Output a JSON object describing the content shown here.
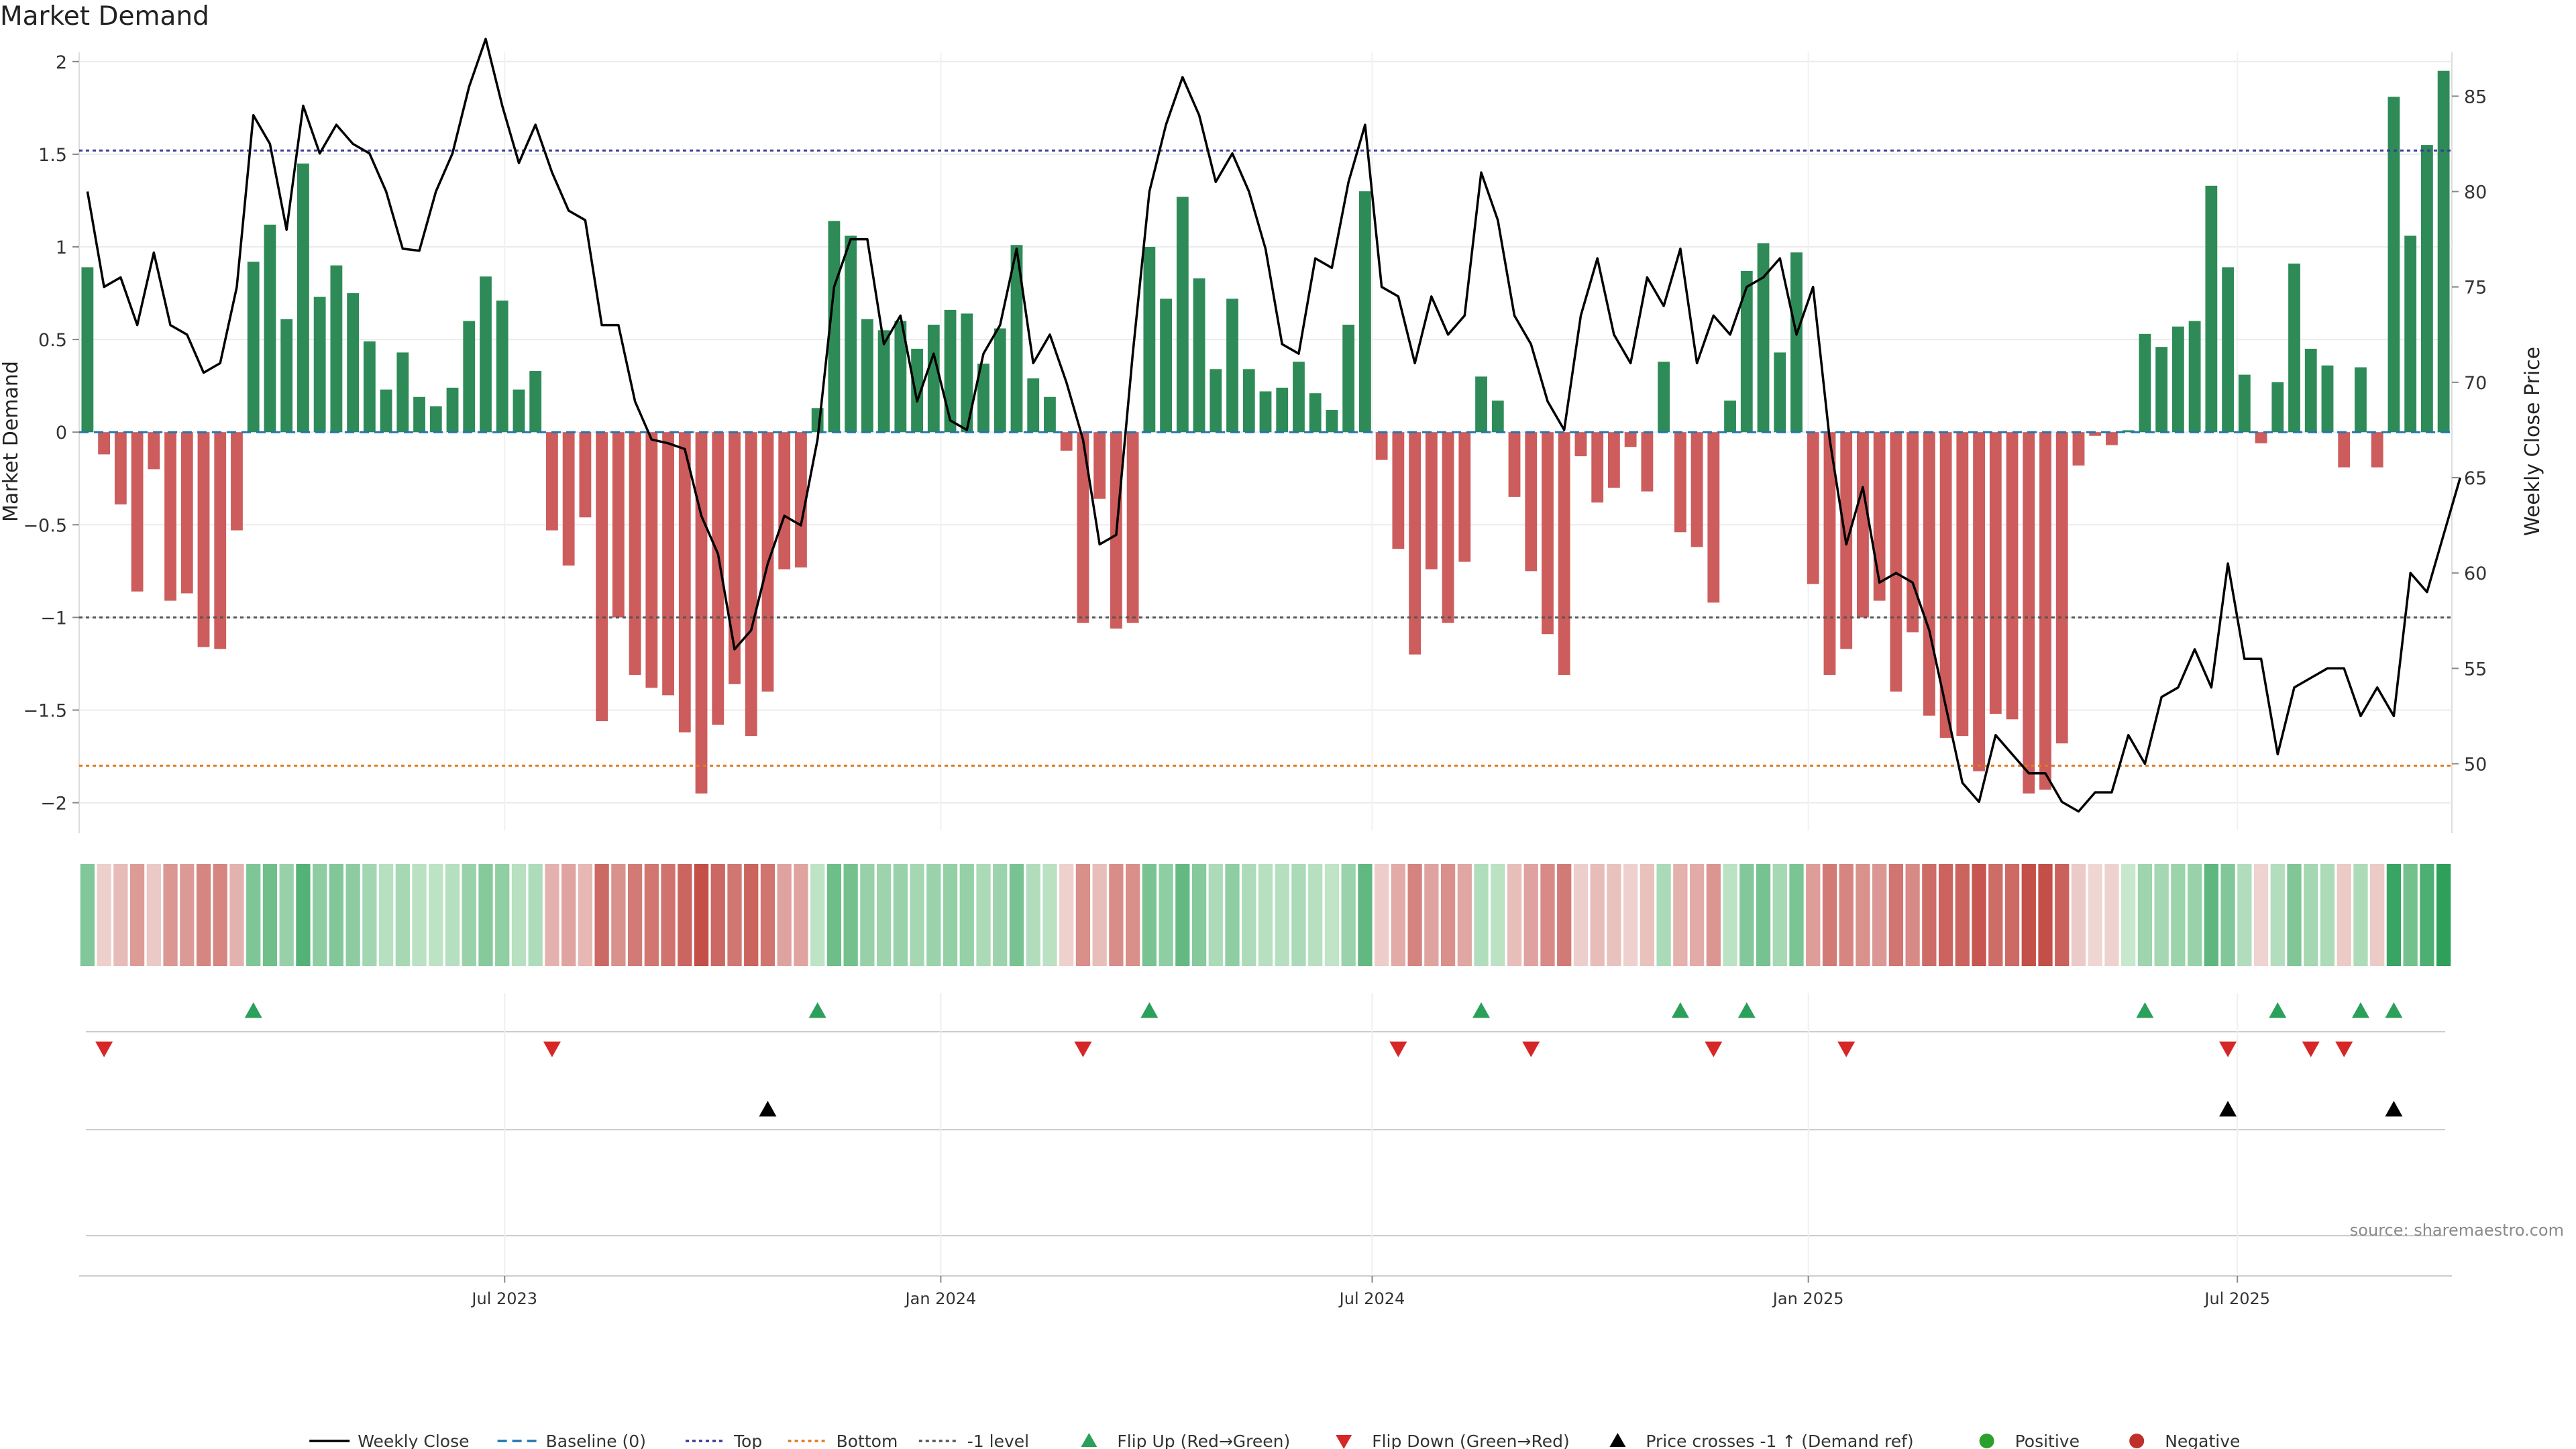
{
  "title": "Market Demand",
  "source": "source: sharemaestro.com",
  "chart_data": {
    "type": "bar",
    "ylabel": "Market Demand",
    "y2label": "Weekly Close Price",
    "ylim": [
      -2.15,
      2.05
    ],
    "y2lim": [
      46.5,
      87.3
    ],
    "yticks": [
      -2,
      -1.5,
      -1,
      -0.5,
      0,
      0.5,
      1,
      1.5,
      2
    ],
    "ytick_labels": [
      "−2",
      "−1.5",
      "−1",
      "−0.5",
      "0",
      "0.5",
      "1",
      "1.5",
      "2"
    ],
    "y2ticks": [
      50,
      55,
      60,
      65,
      70,
      75,
      80,
      85
    ],
    "y2tick_labels": [
      "50",
      "55",
      "60",
      "65",
      "70",
      "75",
      "80",
      "85"
    ],
    "x_start": "2023-01-06",
    "week_count": 145,
    "xticks": [
      {
        "date": "2023-07-01",
        "label": "Jul 2023"
      },
      {
        "date": "2024-01-01",
        "label": "Jan 2024"
      },
      {
        "date": "2024-07-01",
        "label": "Jul 2024"
      },
      {
        "date": "2025-01-01",
        "label": "Jan 2025"
      },
      {
        "date": "2025-07-01",
        "label": "Jul 2025"
      }
    ],
    "reference_lines": [
      {
        "name": "Baseline (0)",
        "y": 0,
        "color": "#1f77b4",
        "style": "dashed"
      },
      {
        "name": "Top",
        "y": 1.52,
        "color": "#3b3b9e",
        "style": "dotted"
      },
      {
        "name": "Bottom",
        "y": -1.8,
        "color": "#e07b20",
        "style": "dotted"
      },
      {
        "name": "-1 level",
        "y": -1.0,
        "color": "#555555",
        "style": "dotted"
      }
    ],
    "series": [
      {
        "name": "Market Demand",
        "kind": "bar",
        "positive_color": "#2e8b57",
        "negative_color": "#cd5c5c",
        "values": [
          0.89,
          -0.12,
          -0.39,
          -0.86,
          -0.2,
          -0.91,
          -0.87,
          -1.16,
          -1.17,
          -0.53,
          0.92,
          1.12,
          0.61,
          1.45,
          0.73,
          0.9,
          0.75,
          0.49,
          0.23,
          0.43,
          0.19,
          0.14,
          0.24,
          0.6,
          0.84,
          0.71,
          0.23,
          0.33,
          -0.53,
          -0.72,
          -0.46,
          -1.56,
          -1.0,
          -1.31,
          -1.38,
          -1.42,
          -1.62,
          -1.95,
          -1.58,
          -1.36,
          -1.64,
          -1.4,
          -0.74,
          -0.73,
          0.13,
          1.14,
          1.06,
          0.61,
          0.55,
          0.6,
          0.45,
          0.58,
          0.66,
          0.64,
          0.37,
          0.56,
          1.01,
          0.29,
          0.19,
          -0.1,
          -1.03,
          -0.36,
          -1.06,
          -1.03,
          1.0,
          0.72,
          1.27,
          0.83,
          0.34,
          0.72,
          0.34,
          0.22,
          0.24,
          0.38,
          0.21,
          0.12,
          0.58,
          1.3,
          -0.15,
          -0.63,
          -1.2,
          -0.74,
          -1.03,
          -0.7,
          0.3,
          0.17,
          -0.35,
          -0.75,
          -1.09,
          -1.31,
          -0.13,
          -0.38,
          -0.3,
          -0.08,
          -0.32,
          0.38,
          -0.54,
          -0.62,
          -0.92,
          0.17,
          0.87,
          1.02,
          0.43,
          0.97,
          -0.82,
          -1.31,
          -1.17,
          -1.0,
          -0.91,
          -1.4,
          -1.08,
          -1.53,
          -1.65,
          -1.64,
          -1.83,
          -1.52,
          -1.55,
          -1.95,
          -1.93,
          -1.68,
          -0.18,
          -0.02,
          -0.07,
          0.01,
          0.53,
          0.46,
          0.57,
          0.6,
          1.33,
          0.89,
          0.31,
          -0.06,
          0.27,
          0.91,
          0.45,
          0.36,
          -0.19,
          0.35,
          -0.19,
          1.81,
          1.06,
          1.55,
          1.95
        ]
      },
      {
        "name": "Weekly Close",
        "kind": "line",
        "axis": "right",
        "color": "#000000",
        "values": [
          80.0,
          75.0,
          75.5,
          73.0,
          76.8,
          73.0,
          72.5,
          70.5,
          71.0,
          75.0,
          84.0,
          82.5,
          78.0,
          84.5,
          82.0,
          83.5,
          82.5,
          82.0,
          80.0,
          77.0,
          76.9,
          80.0,
          82.0,
          85.5,
          88.0,
          84.5,
          81.5,
          83.5,
          81.0,
          79.0,
          78.5,
          73.0,
          73.0,
          69.0,
          67.0,
          66.8,
          66.5,
          63.0,
          61.0,
          56.0,
          57.0,
          60.5,
          63.0,
          62.5,
          67.0,
          75.0,
          77.5,
          77.5,
          72.0,
          73.5,
          69.0,
          71.5,
          68.0,
          67.5,
          71.5,
          73.0,
          77.0,
          71.0,
          72.5,
          70.0,
          67.0,
          61.5,
          62.0,
          71.5,
          80.0,
          83.5,
          86.0,
          84.0,
          80.5,
          82.0,
          80.0,
          77.0,
          72.0,
          71.5,
          76.5,
          76.0,
          80.5,
          83.5,
          75.0,
          74.5,
          71.0,
          74.5,
          72.5,
          73.5,
          81.0,
          78.5,
          73.5,
          72.0,
          69.0,
          67.5,
          73.5,
          76.5,
          72.5,
          71.0,
          75.5,
          74.0,
          77.0,
          71.0,
          73.5,
          72.5,
          75.0,
          75.5,
          76.5,
          72.5,
          75.0,
          67.0,
          61.5,
          64.5,
          59.5,
          60.0,
          59.5,
          57.0,
          53.0,
          49.0,
          48.0,
          51.5,
          50.5,
          49.5,
          49.5,
          48.0,
          47.5,
          48.5,
          48.5,
          51.5,
          50.0,
          53.5,
          54.0,
          56.0,
          54.0,
          60.5,
          55.5,
          55.5,
          50.5,
          54.0,
          54.5,
          55.0,
          55.0,
          52.5,
          54.0,
          52.5,
          60.0,
          59.0,
          62.0,
          65.0
        ]
      }
    ],
    "event_rows": [
      {
        "name": "Flip Up (Red→Green)",
        "symbol": "triangle-up",
        "color": "#2ca05a",
        "weeks": [
          10,
          44,
          64,
          84,
          96,
          100,
          124,
          132,
          137,
          139
        ]
      },
      {
        "name": "Flip Down (Green→Red)",
        "symbol": "triangle-down",
        "color": "#d62728",
        "weeks": [
          1,
          28,
          60,
          79,
          87,
          98,
          106,
          129,
          134,
          136
        ]
      },
      {
        "name": "Price crosses -1 ↑ (Demand ref)",
        "symbol": "triangle-up",
        "color": "#000000",
        "weeks": [
          41,
          129,
          139
        ]
      },
      {
        "name": "Positive/Negative",
        "symbol": "circle",
        "color": "#2ca02c",
        "weeks": []
      }
    ],
    "legend": {
      "placement": "bottom-center",
      "items": [
        {
          "label": "Weekly Close",
          "kind": "line-solid",
          "color": "#000000"
        },
        {
          "label": "Baseline (0)",
          "kind": "line-dashed",
          "color": "#1f77b4"
        },
        {
          "label": "Top",
          "kind": "line-dotted",
          "color": "#3b3b9e"
        },
        {
          "label": "Bottom",
          "kind": "line-dotted",
          "color": "#e07b20"
        },
        {
          "label": "-1 level",
          "kind": "line-dotted",
          "color": "#555555"
        },
        {
          "label": "Flip Up (Red→Green)",
          "kind": "tri-up",
          "color": "#2ca05a"
        },
        {
          "label": "Flip Down (Green→Red)",
          "kind": "tri-down",
          "color": "#d62728"
        },
        {
          "label": "Price crosses -1 ↑ (Demand ref)",
          "kind": "tri-up",
          "color": "#000000"
        },
        {
          "label": "Positive",
          "kind": "circle",
          "color": "#2ca02c"
        },
        {
          "label": "Negative",
          "kind": "circle",
          "color": "#c0302a"
        }
      ]
    },
    "grid": true
  }
}
